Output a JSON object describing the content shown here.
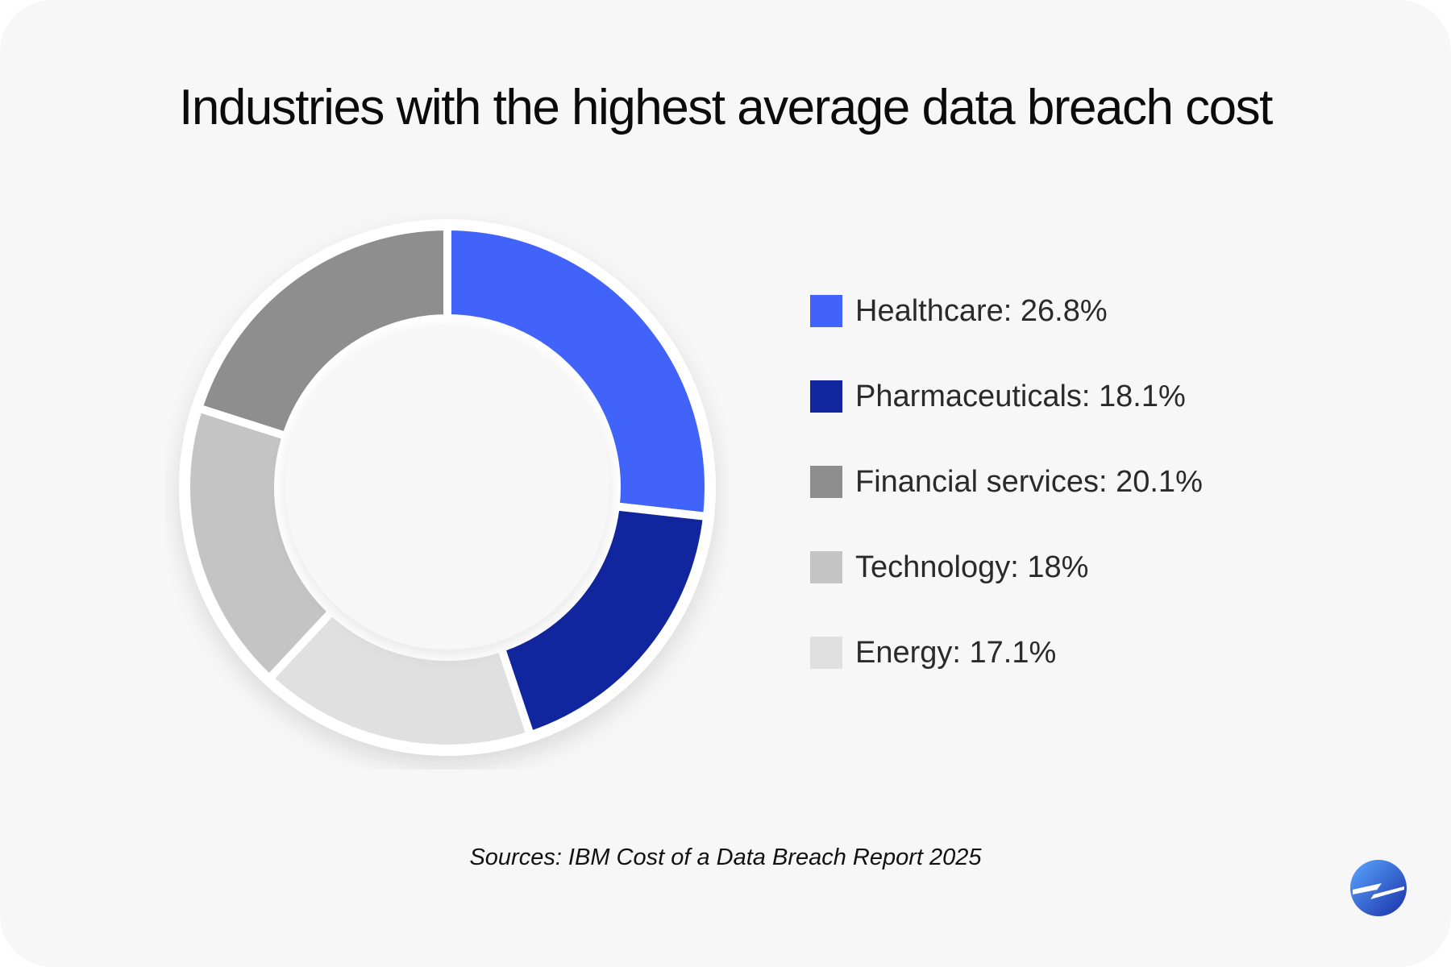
{
  "title": "Industries with the highest average data breach cost",
  "source": "Sources: IBM Cost of a Data Breach Report 2025",
  "logo": {
    "icon": "brand-logo-icon",
    "colors": [
      "#4c8dff",
      "#1a36b8"
    ]
  },
  "chart_data": {
    "type": "pie",
    "donut": true,
    "legend_position": "right",
    "slices": [
      {
        "label": "Healthcare: 26.8%",
        "name": "Healthcare",
        "value": 26.8,
        "color": "#4163f9"
      },
      {
        "label": "Pharmaceuticals: 18.1%",
        "name": "Pharmaceuticals",
        "value": 18.1,
        "color": "#11259e"
      },
      {
        "label": "Energy: 17.1%",
        "name": "Energy",
        "value": 17.1,
        "color": "#e0e0e0"
      },
      {
        "label": "Technology: 18%",
        "name": "Technology",
        "value": 18,
        "color": "#c4c4c4"
      },
      {
        "label": "Financial services: 20.1%",
        "name": "Financial services",
        "value": 20.1,
        "color": "#8e8e8e"
      }
    ],
    "legend_order": [
      "Healthcare",
      "Pharmaceuticals",
      "Financial services",
      "Technology",
      "Energy"
    ]
  }
}
